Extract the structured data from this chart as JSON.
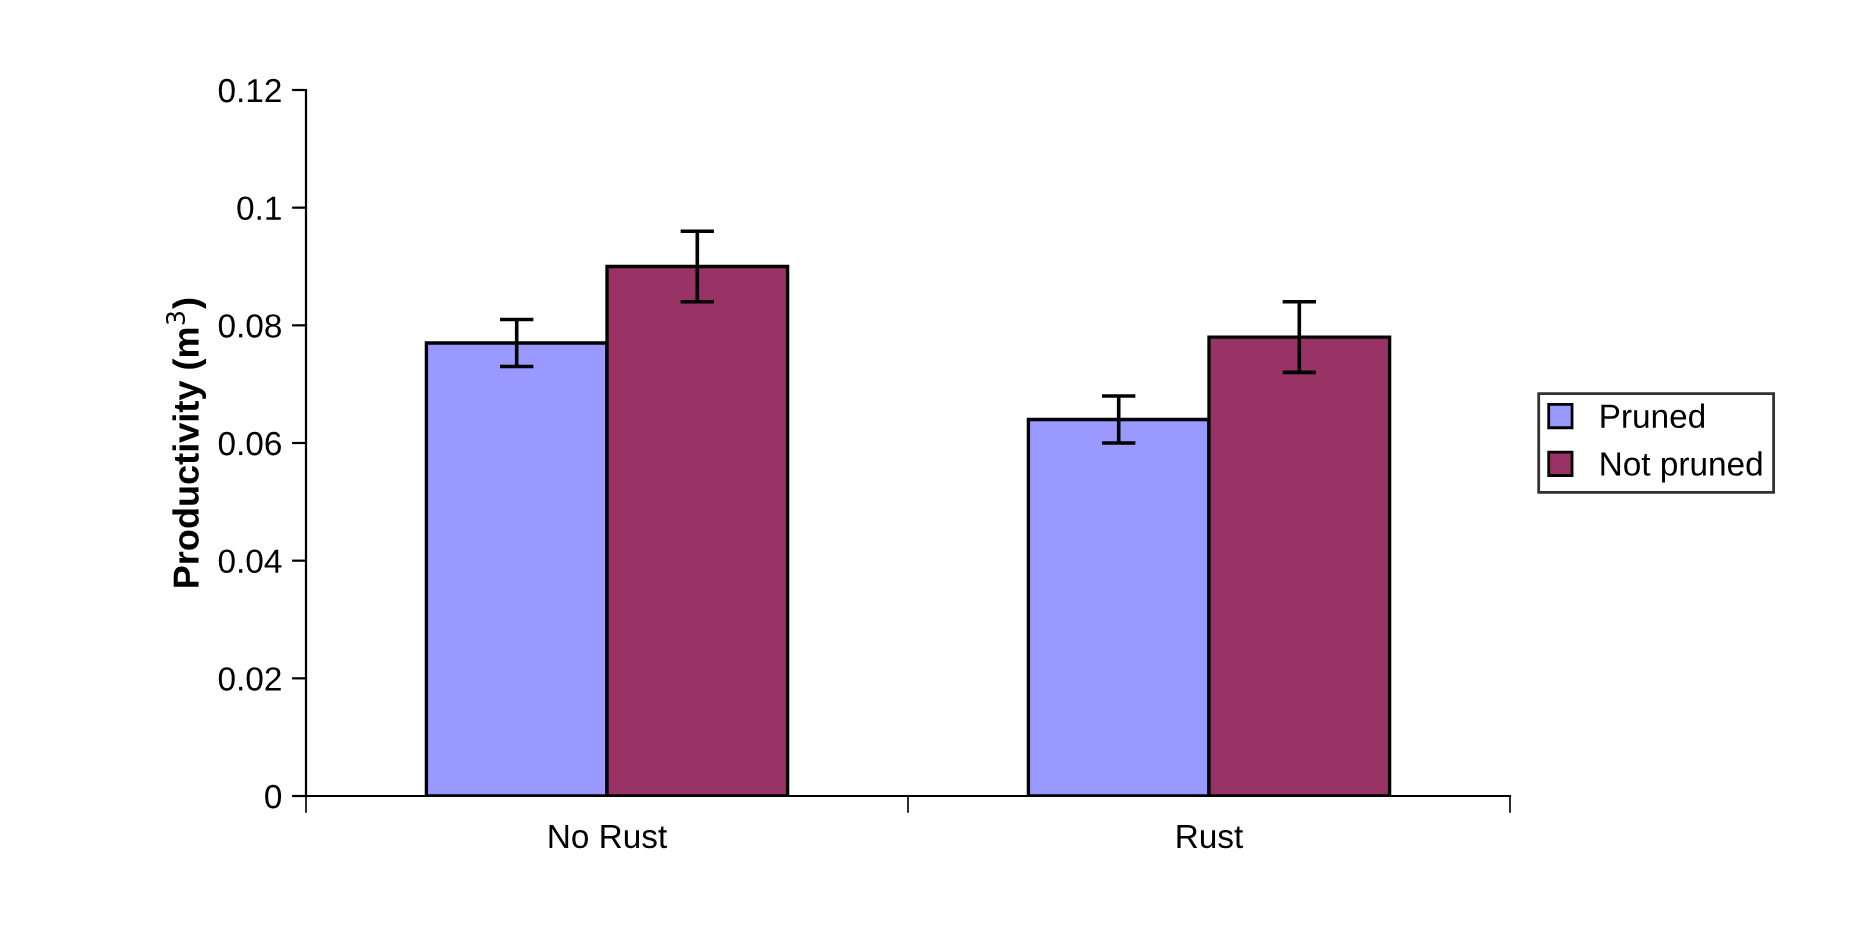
{
  "chart_data": {
    "type": "bar",
    "ylabel": "Productivity (m$^{3}$)",
    "categories": [
      "No Rust",
      "Rust"
    ],
    "series": [
      {
        "name": "Pruned",
        "color": "#9999ff",
        "values": [
          0.077,
          0.064
        ],
        "errors": [
          0.004,
          0.004
        ]
      },
      {
        "name": "Not pruned",
        "color": "#993366",
        "values": [
          0.09,
          0.078
        ],
        "errors": [
          0.006,
          0.006
        ]
      }
    ],
    "ylim": [
      0,
      0.12
    ],
    "yticks": [
      {
        "value": 0,
        "label": "0"
      },
      0.02,
      0.04,
      0.06,
      0.08,
      {
        "value": 0.1,
        "label": "0.1"
      },
      0.12
    ],
    "grid": false,
    "legend": "right"
  }
}
